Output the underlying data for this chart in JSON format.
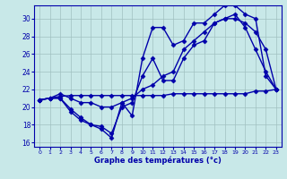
{
  "background_color": "#c8e8e8",
  "grid_color": "#a0c0c0",
  "line_color": "#0000aa",
  "xlabel": "Graphe des températures (°c)",
  "xlabel_color": "#0000aa",
  "xlim": [
    -0.5,
    23.5
  ],
  "ylim": [
    15.5,
    31.5
  ],
  "yticks": [
    16,
    18,
    20,
    22,
    24,
    26,
    28,
    30
  ],
  "xticks": [
    0,
    1,
    2,
    3,
    4,
    5,
    6,
    7,
    8,
    9,
    10,
    11,
    12,
    13,
    14,
    15,
    16,
    17,
    18,
    19,
    20,
    21,
    22,
    23
  ],
  "series": [
    {
      "x": [
        0,
        1,
        2,
        3,
        4,
        5,
        6,
        7,
        8,
        9,
        10,
        11,
        12,
        13,
        14,
        15,
        16,
        17,
        18,
        19,
        20,
        21,
        22,
        23
      ],
      "y": [
        20.8,
        21.0,
        21.0,
        19.8,
        18.8,
        18.0,
        17.5,
        16.5,
        20.5,
        19.0,
        25.5,
        29.0,
        29.0,
        27.0,
        27.5,
        29.5,
        29.5,
        30.5,
        31.5,
        31.5,
        30.5,
        30.0,
        23.5,
        22.0
      ]
    },
    {
      "x": [
        0,
        1,
        2,
        3,
        4,
        5,
        6,
        7,
        8,
        9,
        10,
        11,
        12,
        13,
        14,
        15,
        16,
        17,
        18,
        19,
        20,
        21,
        22,
        23
      ],
      "y": [
        20.8,
        21.0,
        21.0,
        19.5,
        18.5,
        18.0,
        17.8,
        17.0,
        20.0,
        20.5,
        23.5,
        25.5,
        23.0,
        23.0,
        25.5,
        27.0,
        27.5,
        29.5,
        30.0,
        30.5,
        29.0,
        26.5,
        24.0,
        22.0
      ]
    },
    {
      "x": [
        0,
        1,
        2,
        3,
        4,
        5,
        6,
        7,
        8,
        9,
        10,
        11,
        12,
        13,
        14,
        15,
        16,
        17,
        18,
        19,
        20,
        21,
        22,
        23
      ],
      "y": [
        20.8,
        21.0,
        21.2,
        21.3,
        21.3,
        21.3,
        21.3,
        21.3,
        21.3,
        21.3,
        21.3,
        21.3,
        21.3,
        21.5,
        21.5,
        21.5,
        21.5,
        21.5,
        21.5,
        21.5,
        21.5,
        21.8,
        21.8,
        22.0
      ]
    },
    {
      "x": [
        0,
        1,
        2,
        3,
        4,
        5,
        6,
        7,
        8,
        9,
        10,
        11,
        12,
        13,
        14,
        15,
        16,
        17,
        18,
        19,
        20,
        21,
        22,
        23
      ],
      "y": [
        20.8,
        21.0,
        21.5,
        21.0,
        20.5,
        20.5,
        20.0,
        20.0,
        20.5,
        21.0,
        22.0,
        22.5,
        23.5,
        24.0,
        26.5,
        27.5,
        28.5,
        29.5,
        30.0,
        30.0,
        29.5,
        28.5,
        26.5,
        22.0
      ]
    }
  ]
}
